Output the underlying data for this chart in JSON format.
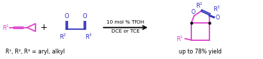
{
  "background_color": "#ffffff",
  "magenta_color": "#dd44cc",
  "blue_color": "#3333bb",
  "black_color": "#000000",
  "arrow_text_line1": "10 mol % TfOH",
  "arrow_text_line2": "DCE or TCE",
  "bottom_text": "R¹, R², R³ = aryl, alkyl",
  "yield_text": "up to 78% yield",
  "fig_width": 3.78,
  "fig_height": 0.85,
  "dpi": 100
}
